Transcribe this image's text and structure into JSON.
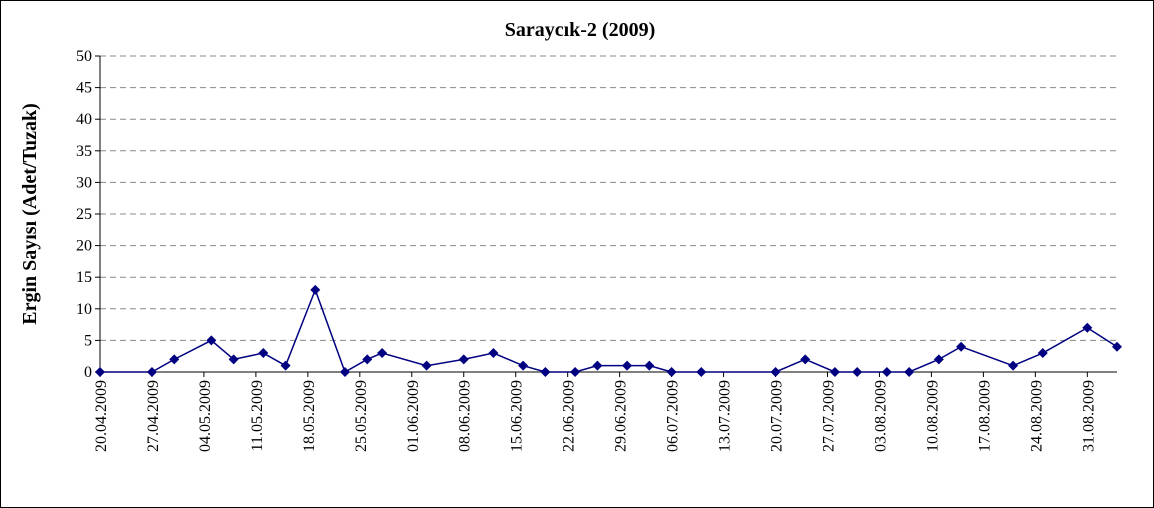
{
  "chart_data": {
    "type": "line",
    "title": "Saraycık-2 (2009)",
    "y_label": "Ergin Sayısı (Adet/Tuzak)",
    "x": [
      "20.04.2009",
      "27.04.2009",
      "30.04.2009",
      "05.05.2009",
      "08.05.2009",
      "12.05.2009",
      "15.05.2009",
      "19.05.2009",
      "23.05.2009",
      "26.05.2009",
      "28.05.2009",
      "03.06.2009",
      "08.06.2009",
      "12.06.2009",
      "16.06.2009",
      "19.06.2009",
      "23.06.2009",
      "26.06.2009",
      "30.06.2009",
      "03.07.2009",
      "06.07.2009",
      "10.07.2009",
      "20.07.2009",
      "24.07.2009",
      "28.07.2009",
      "31.07.2009",
      "04.08.2009",
      "07.08.2009",
      "11.08.2009",
      "14.08.2009",
      "21.08.2009",
      "25.08.2009",
      "31.08.2009",
      "04.09.2009"
    ],
    "series": [
      {
        "name": "Saraycık-2",
        "color": "#000080",
        "values": [
          0,
          0,
          2,
          5,
          2,
          3,
          1,
          13,
          0,
          2,
          3,
          1,
          2,
          3,
          1,
          0,
          0,
          1,
          1,
          1,
          0,
          0,
          0,
          2,
          0,
          0,
          0,
          0,
          2,
          4,
          1,
          3,
          7,
          4
        ]
      }
    ],
    "xlim": [
      "20.04.2009",
      "04.09.2009"
    ],
    "xticks": [
      "20.04.2009",
      "27.04.2009",
      "04.05.2009",
      "11.05.2009",
      "18.05.2009",
      "25.05.2009",
      "01.06.2009",
      "08.06.2009",
      "15.06.2009",
      "22.06.2009",
      "29.06.2009",
      "06.07.2009",
      "13.07.2009",
      "20.07.2009",
      "27.07.2009",
      "03.08.2009",
      "10.08.2009",
      "17.08.2009",
      "24.08.2009",
      "31.08.2009"
    ],
    "ylim": [
      0,
      50
    ],
    "yticks": [
      0,
      5,
      10,
      15,
      20,
      25,
      30,
      35,
      40,
      45,
      50
    ],
    "grid": true
  }
}
